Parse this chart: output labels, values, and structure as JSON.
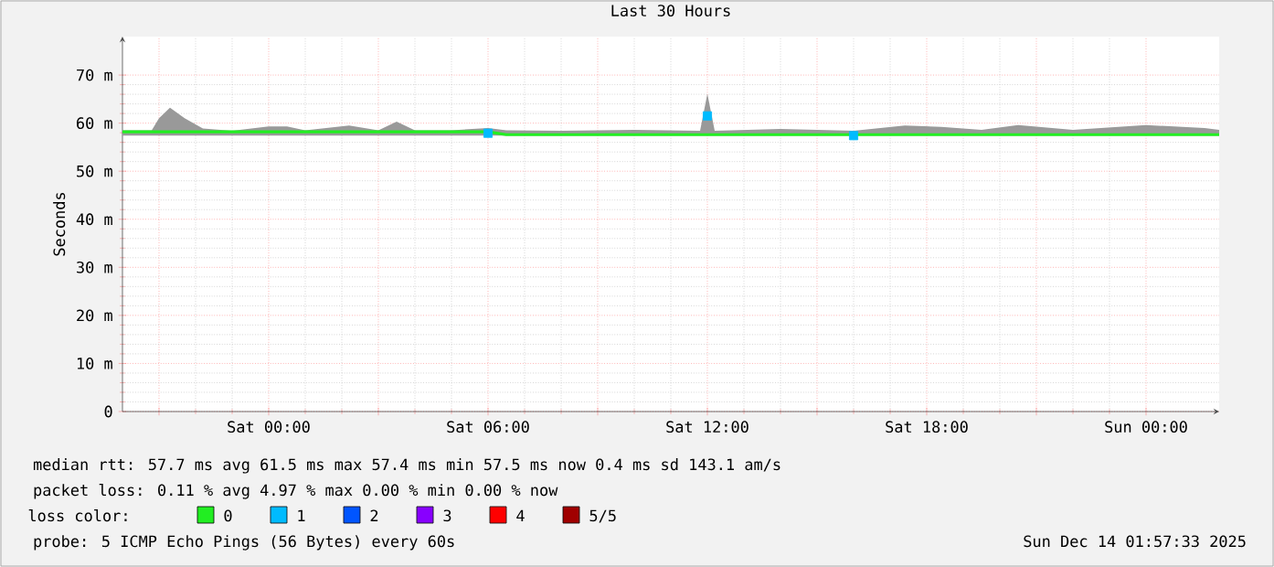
{
  "chart_data": {
    "type": "line",
    "title": "Last 30 Hours",
    "ylabel": "Seconds",
    "legend_title": "loss color:",
    "legend": "bottom",
    "grid": true,
    "xlim": [
      "2025-12-12T20:00",
      "2025-12-14T02:00"
    ],
    "xticks": [
      {
        "value": "2025-12-12T21:00",
        "label": null
      },
      {
        "value": "2025-12-13T00:00",
        "label": "Sat 00:00"
      },
      {
        "value": "2025-12-13T03:00",
        "label": null
      },
      {
        "value": "2025-12-13T06:00",
        "label": "Sat 06:00"
      },
      {
        "value": "2025-12-13T09:00",
        "label": null
      },
      {
        "value": "2025-12-13T12:00",
        "label": "Sat 12:00"
      },
      {
        "value": "2025-12-13T15:00",
        "label": null
      },
      {
        "value": "2025-12-13T18:00",
        "label": "Sat 18:00"
      },
      {
        "value": "2025-12-13T21:00",
        "label": null
      },
      {
        "value": "2025-12-14T00:00",
        "label": "Sun 00:00"
      }
    ],
    "ylim": [
      0,
      78
    ],
    "yticks": [
      0,
      {
        "value": 10,
        "label": "10 m"
      },
      {
        "value": 20,
        "label": "20 m"
      },
      {
        "value": 30,
        "label": "30 m"
      },
      {
        "value": 40,
        "label": "40 m"
      },
      {
        "value": 50,
        "label": "50 m"
      },
      {
        "value": 60,
        "label": "60 m"
      },
      {
        "value": 70,
        "label": "70 m"
      }
    ],
    "series": [
      {
        "name": "0",
        "color": "#22ee22",
        "x": [
          "2025-12-12T20:00",
          "2025-12-12T20:48",
          "2025-12-12T21:00",
          "2025-12-12T21:18",
          "2025-12-12T21:42",
          "2025-12-12T22:12",
          "2025-12-12T23:00",
          "2025-12-13T00:00",
          "2025-12-13T00:30",
          "2025-12-13T01:00",
          "2025-12-13T02:12",
          "2025-12-13T03:00",
          "2025-12-13T03:30",
          "2025-12-13T04:00",
          "2025-12-13T05:00",
          "2025-12-13T06:00",
          "2025-12-13T06:30",
          "2025-12-13T08:00",
          "2025-12-13T10:00",
          "2025-12-13T11:48",
          "2025-12-13T12:00",
          "2025-12-13T12:12",
          "2025-12-13T14:00",
          "2025-12-13T16:00",
          "2025-12-13T17:24",
          "2025-12-13T18:24",
          "2025-12-13T19:30",
          "2025-12-13T20:30",
          "2025-12-13T22:00",
          "2025-12-14T00:00",
          "2025-12-14T01:00",
          "2025-12-14T01:36",
          "2025-12-14T02:00"
        ],
        "values": [
          58.2,
          58.2,
          58.2,
          58.2,
          58.2,
          58.2,
          58.2,
          58.2,
          58.2,
          58.2,
          58.2,
          58.2,
          58.2,
          58.2,
          58.2,
          58.2,
          57.6,
          57.6,
          57.6,
          57.6,
          57.6,
          57.6,
          57.6,
          57.6,
          57.6,
          57.6,
          57.6,
          57.6,
          57.6,
          57.6,
          57.6,
          57.6,
          57.6
        ],
        "lower": [
          57.4,
          57.4,
          57.4,
          57.4,
          57.4,
          57.4,
          57.4,
          57.4,
          57.4,
          57.4,
          57.4,
          57.4,
          57.4,
          57.4,
          57.4,
          57.4,
          57.4,
          57.4,
          57.4,
          57.4,
          57.4,
          57.4,
          57.4,
          57.4,
          57.4,
          57.4,
          57.4,
          57.4,
          57.4,
          57.4,
          57.4,
          57.4,
          57.4
        ],
        "upper": [
          58.5,
          58.5,
          61,
          63.2,
          61,
          58.9,
          58.4,
          59.3,
          59.3,
          58.5,
          59.5,
          58.5,
          60.3,
          58.5,
          58.5,
          59,
          58.5,
          58.4,
          58.6,
          58.4,
          66.1,
          58.4,
          58.8,
          58.4,
          59.5,
          59.2,
          58.6,
          59.6,
          58.6,
          59.6,
          59.2,
          59,
          58.6
        ]
      },
      {
        "name": "1",
        "type": "scatter",
        "marker": "square",
        "color": "#00bbff",
        "x": [
          "2025-12-13T06:00",
          "2025-12-13T12:00",
          "2025-12-13T16:00"
        ],
        "values": [
          57.9,
          61.5,
          57.4
        ]
      },
      {
        "name": "2",
        "color": "#0055ff"
      },
      {
        "name": "3",
        "color": "#8800ff"
      },
      {
        "name": "4",
        "color": "#ff0000"
      },
      {
        "name": "5/5",
        "color": "#a00000"
      }
    ],
    "annotations": [
      "median rtt:  57.7 ms avg  61.5 ms max  57.4 ms min  57.5 ms now  0.4 ms sd  143.1  am/s",
      "packet loss: 0.11 % avg  4.97 % max  0.00 % min  0.00 % now",
      "probe:  5 ICMP Echo Pings (56 Bytes) every 60s",
      "Sun Dec 14 01:57:33 2025"
    ]
  }
}
